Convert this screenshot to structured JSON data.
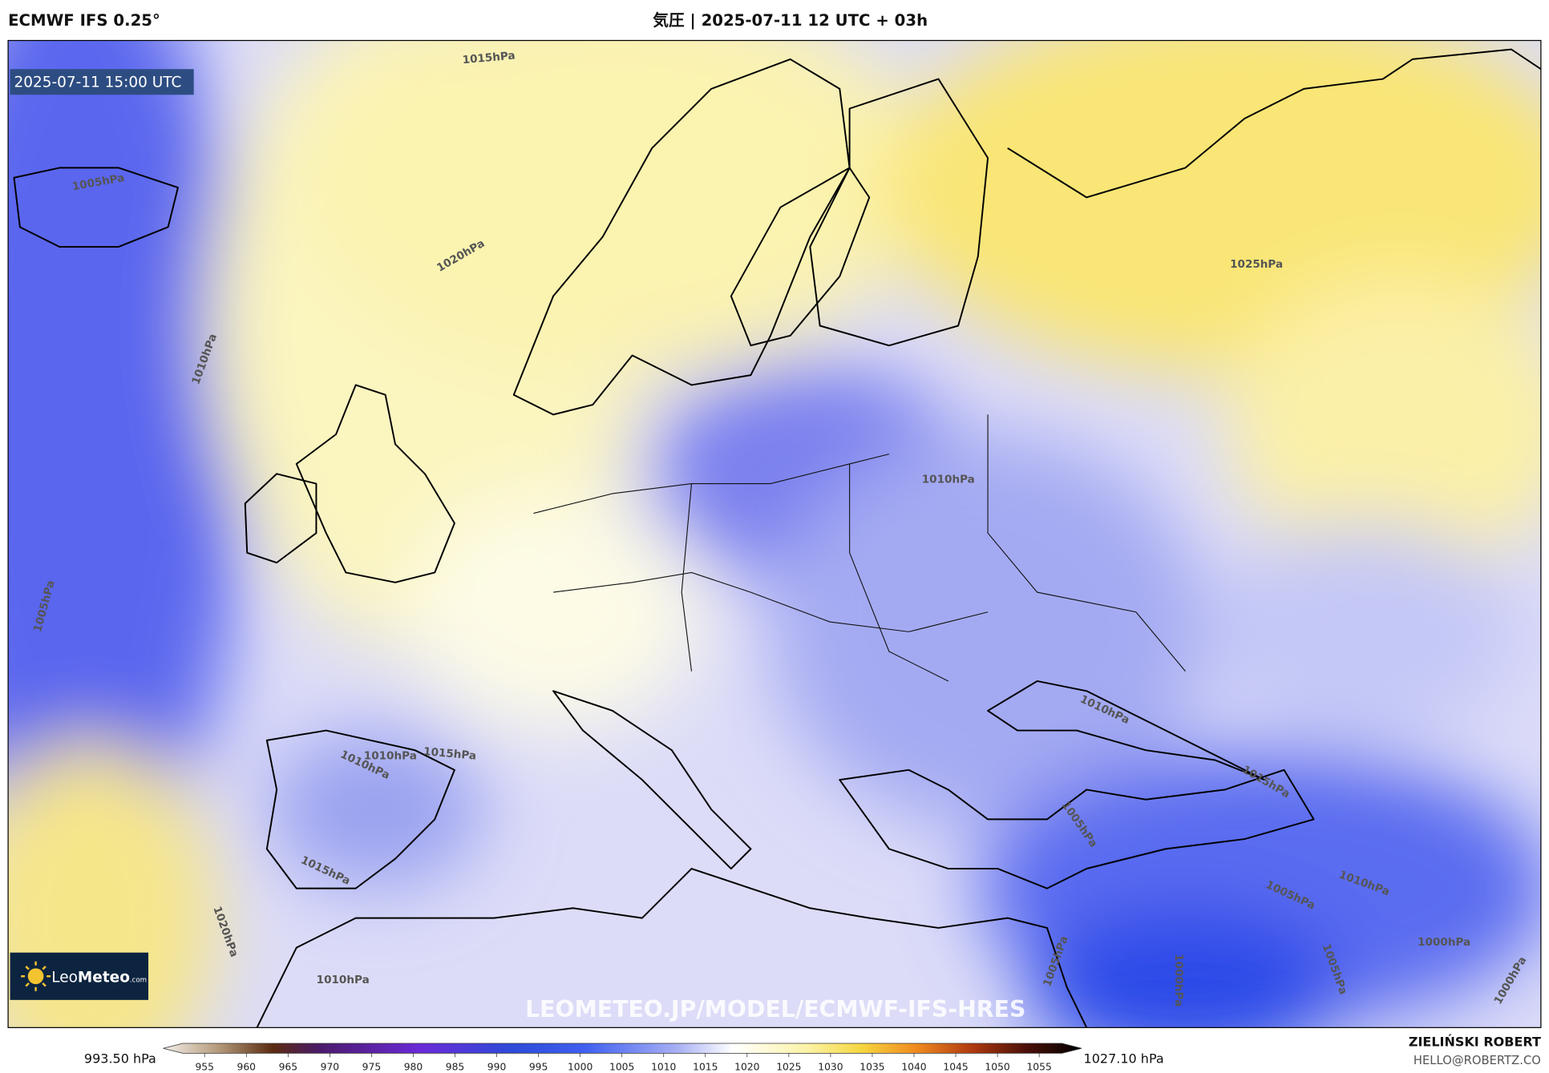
{
  "header": {
    "model": "ECMWF IFS 0.25°",
    "title": "気圧 | 2025-07-11 12 UTC + 03h"
  },
  "map": {
    "timestamp": "2025-07-11 15:00 UTC",
    "contour_labels": [
      "1015hPa",
      "1005hPa",
      "1020hPa",
      "1010hPa",
      "1005hPa",
      "1025hPa",
      "1010hPa",
      "1010hPa",
      "1010hPa",
      "1010hPa",
      "1015hPa",
      "1015hPa",
      "1005hPa",
      "1015hPa",
      "1020hPa",
      "1010hPa",
      "1005hPa",
      "1000hPa",
      "1005hPa",
      "1000hPa",
      "1005hPa",
      "1010hPa",
      "1000hPa"
    ],
    "logo": {
      "brand_light": "Leo",
      "brand_bold": "Meteo",
      "suffix": ".com"
    },
    "watermark": "LEOMETEO.JP/MODEL/ECMWF-IFS-HRES"
  },
  "colorbar": {
    "min_label": "993.50 hPa",
    "max_label": "1027.10 hPa",
    "ticks": [
      955,
      960,
      965,
      970,
      975,
      980,
      985,
      990,
      995,
      1000,
      1005,
      1010,
      1015,
      1020,
      1025,
      1030,
      1035,
      1040,
      1045,
      1050,
      1055
    ]
  },
  "footer": {
    "author": "ZIELIŃSKI ROBERT",
    "email": "HELLO@ROBERTZ.CO"
  }
}
